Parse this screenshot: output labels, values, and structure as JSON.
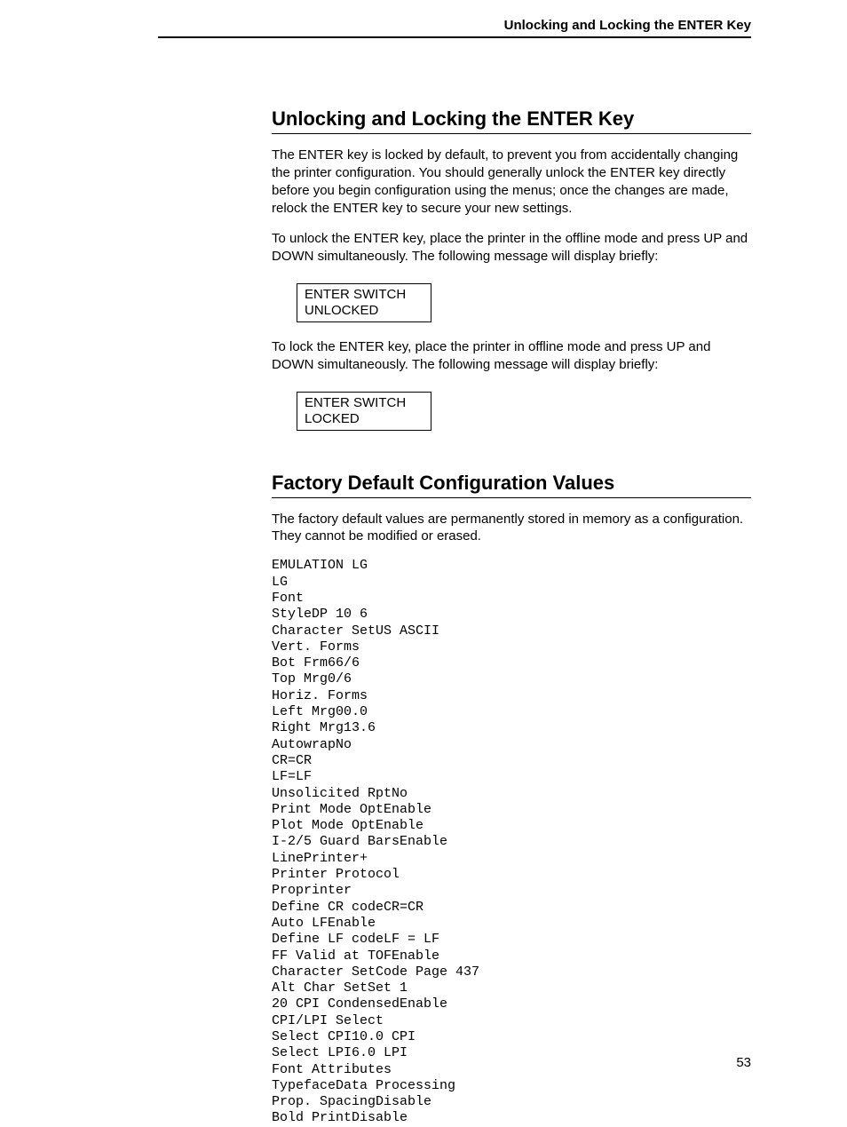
{
  "document": {
    "background_color": "#ffffff",
    "text_color": "#000000",
    "body_font": "Arial, Helvetica, sans-serif",
    "mono_font": "Courier New, Courier, monospace",
    "title_fontsize": 22,
    "body_fontsize": 15,
    "mono_fontsize": 15,
    "line_height": 1.33,
    "rule_color": "#000000",
    "header_rule_width": 2,
    "section_rule_width": 1,
    "display_box_border_width": 1.5,
    "display_box_min_width": 152
  },
  "header": {
    "running_title": "Unlocking and Locking the ENTER Key"
  },
  "sections": {
    "unlocking": {
      "title": "Unlocking and Locking the ENTER Key",
      "para1": "The ENTER key is locked by default, to prevent you from accidentally changing the printer configuration. You should generally unlock the ENTER key directly before you begin configuration using the menus; once the changes are made, relock the ENTER key to secure your new settings.",
      "para2": "To unlock the ENTER key, place the printer in the offline mode and press UP and DOWN simultaneously. The following message will display briefly:",
      "display1_line1": "ENTER SWITCH",
      "display1_line2": "UNLOCKED",
      "para3": "To lock the ENTER key, place the printer in offline mode and press UP and DOWN simultaneously. The following message will display briefly:",
      "display2_line1": "ENTER SWITCH",
      "display2_line2": "LOCKED"
    },
    "factory": {
      "title": "Factory Default Configuration Values",
      "para1": "The factory default values are permanently stored in memory as a configuration. They cannot be modified or erased.",
      "config_lines": [
        "EMULATION LG",
        "LG",
        "Font",
        "StyleDP 10 6",
        "Character SetUS ASCII",
        "Vert. Forms",
        "Bot Frm66/6",
        "Top Mrg0/6",
        "Horiz. Forms",
        "Left Mrg00.0",
        "Right Mrg13.6",
        "AutowrapNo",
        "CR=CR",
        "LF=LF",
        "Unsolicited RptNo",
        "Print Mode OptEnable",
        "Plot Mode OptEnable",
        "I-2/5 Guard BarsEnable",
        "LinePrinter+",
        "Printer Protocol",
        "Proprinter",
        "Define CR codeCR=CR",
        "Auto LFEnable",
        "Define LF codeLF = LF",
        "FF Valid at TOFEnable",
        "Character SetCode Page 437",
        "Alt Char SetSet 1",
        "20 CPI CondensedEnable",
        "CPI/LPI Select",
        "Select CPI10.0 CPI",
        "Select LPI6.0 LPI",
        "Font Attributes",
        "TypefaceData Processing",
        "Prop. SpacingDisable",
        "Bold PrintDisable"
      ]
    }
  },
  "footer": {
    "page_number": "53"
  }
}
